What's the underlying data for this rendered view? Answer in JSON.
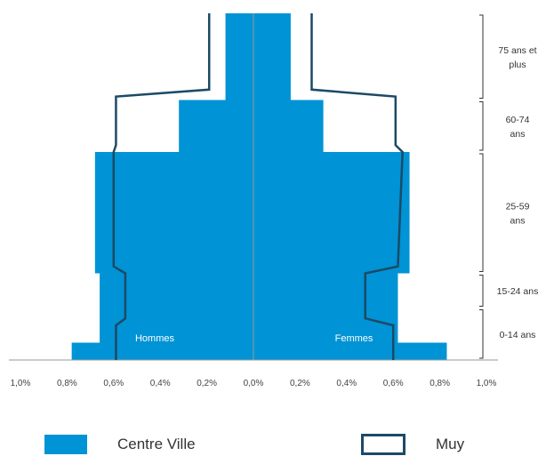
{
  "chart_data": {
    "type": "bar",
    "subtype": "population-pyramid",
    "xlim": [
      -1.0,
      1.0
    ],
    "x_ticks": [
      "1,0%",
      "0,8%",
      "0,6%",
      "0,4%",
      "0,2%",
      "0,0%",
      "0,2%",
      "0,4%",
      "0,6%",
      "0,8%",
      "1,0%"
    ],
    "side_labels": {
      "left": "Hommes",
      "right": "Femmes"
    },
    "age_groups": [
      {
        "label": "75 ans et plus",
        "lines": [
          "75 ans et",
          "plus"
        ],
        "age_from": 75,
        "age_to": 100
      },
      {
        "label": "60-74 ans",
        "lines": [
          "60-74",
          "ans"
        ],
        "age_from": 60,
        "age_to": 75
      },
      {
        "label": "25-59 ans",
        "lines": [
          "25-59",
          "ans"
        ],
        "age_from": 25,
        "age_to": 60
      },
      {
        "label": "15-24 ans",
        "lines": [
          "15-24 ans"
        ],
        "age_from": 15,
        "age_to": 25
      },
      {
        "label": "0-14 ans",
        "lines": [
          "0-14 ans"
        ],
        "age_from": 0,
        "age_to": 15
      }
    ],
    "series": [
      {
        "name": "Centre Ville",
        "kind": "bars",
        "color": "#0093d5",
        "bands": [
          {
            "age_from": 0,
            "age_to": 5,
            "hommes": 0.78,
            "femmes": 0.83
          },
          {
            "age_from": 5,
            "age_to": 15,
            "hommes": 0.66,
            "femmes": 0.62
          },
          {
            "age_from": 15,
            "age_to": 25,
            "hommes": 0.66,
            "femmes": 0.62
          },
          {
            "age_from": 25,
            "age_to": 60,
            "hommes": 0.68,
            "femmes": 0.67
          },
          {
            "age_from": 60,
            "age_to": 75,
            "hommes": 0.32,
            "femmes": 0.3
          },
          {
            "age_from": 75,
            "age_to": 100,
            "hommes": 0.12,
            "femmes": 0.16
          }
        ]
      },
      {
        "name": "Muy",
        "kind": "outline",
        "color": "#1c4a66",
        "points": [
          {
            "age": 0,
            "hommes": 0.59,
            "femmes": 0.6
          },
          {
            "age": 10,
            "hommes": 0.59,
            "femmes": 0.6
          },
          {
            "age": 12,
            "hommes": 0.55,
            "femmes": 0.48
          },
          {
            "age": 25,
            "hommes": 0.55,
            "femmes": 0.48
          },
          {
            "age": 27,
            "hommes": 0.6,
            "femmes": 0.62
          },
          {
            "age": 60,
            "hommes": 0.6,
            "femmes": 0.64
          },
          {
            "age": 62,
            "hommes": 0.59,
            "femmes": 0.61
          },
          {
            "age": 76,
            "hommes": 0.59,
            "femmes": 0.61
          },
          {
            "age": 78,
            "hommes": 0.19,
            "femmes": 0.25
          },
          {
            "age": 100,
            "hommes": 0.19,
            "femmes": 0.25
          }
        ]
      }
    ],
    "legend": [
      {
        "label": "Centre Ville",
        "kind": "bars"
      },
      {
        "label": "Muy",
        "kind": "outline"
      }
    ],
    "legend_position": "bottom"
  }
}
